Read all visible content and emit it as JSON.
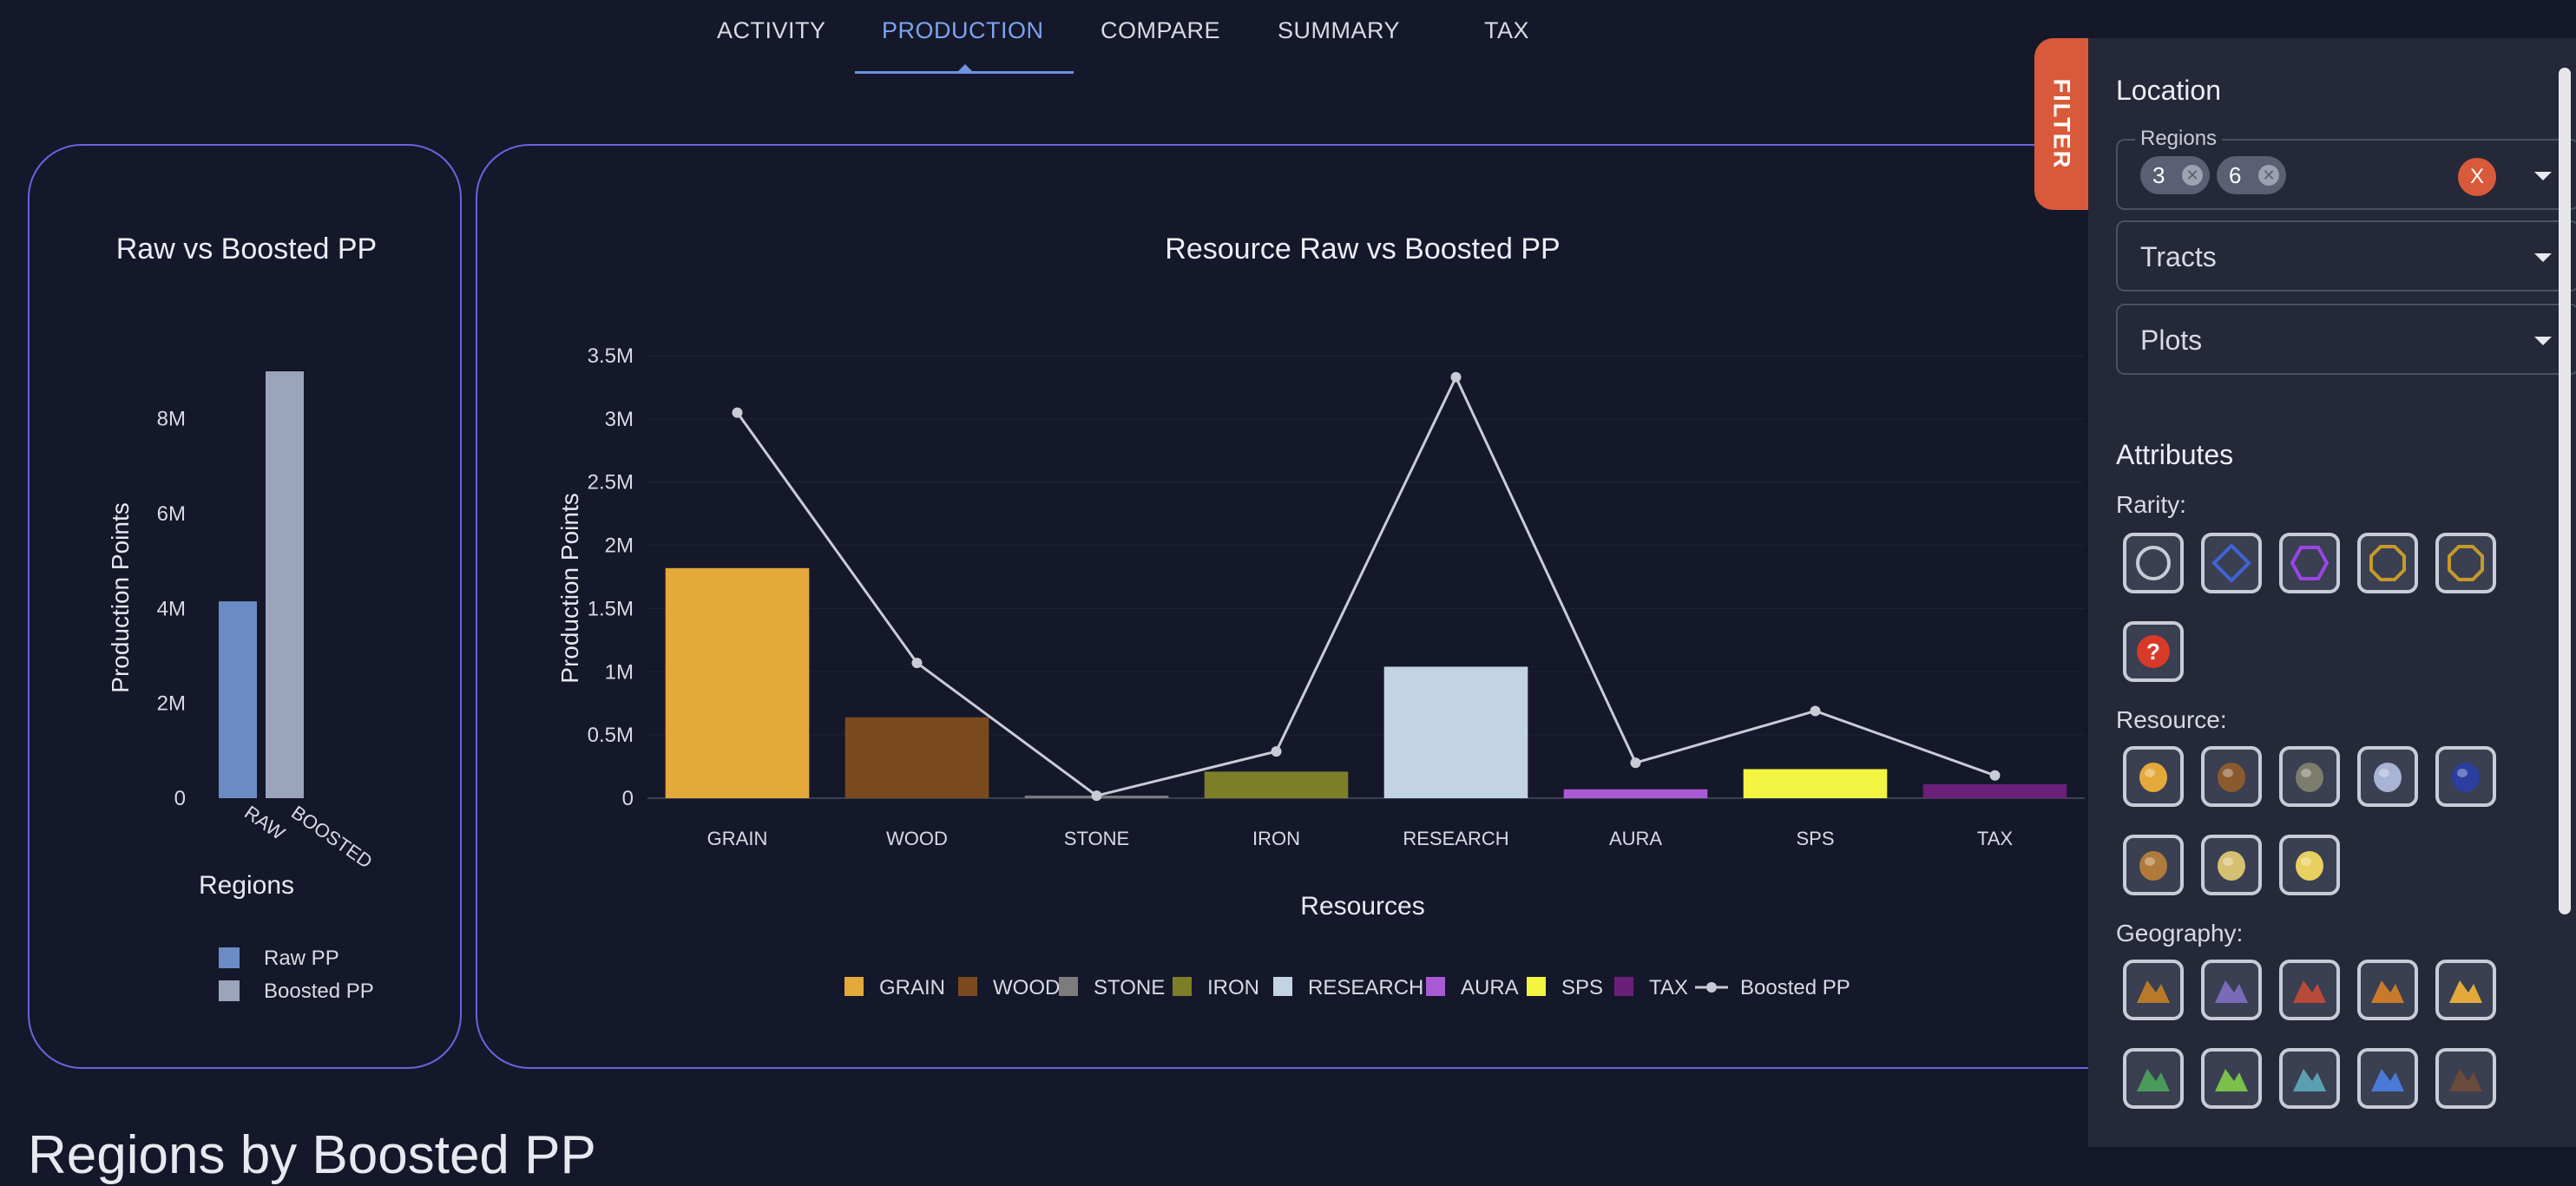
{
  "nav": {
    "tabs": [
      {
        "label": "ACTIVITY"
      },
      {
        "label": "PRODUCTION"
      },
      {
        "label": "COMPARE"
      },
      {
        "label": "SUMMARY"
      },
      {
        "label": "TAX"
      }
    ],
    "active_tab": "PRODUCTION"
  },
  "chart_data": [
    {
      "type": "bar",
      "title": "Raw vs Boosted PP",
      "xlabel": "Regions",
      "ylabel": "Production Points",
      "categories": [
        "RAW",
        "BOOSTED"
      ],
      "values": [
        4150000,
        9000000
      ],
      "colors": [
        "#6b8bc5",
        "#9aa4bb"
      ],
      "ylim": [
        0,
        9000000
      ],
      "yticks": [
        {
          "value": 0,
          "label": "0"
        },
        {
          "value": 2000000,
          "label": "2M"
        },
        {
          "value": 4000000,
          "label": "4M"
        },
        {
          "value": 6000000,
          "label": "6M"
        },
        {
          "value": 8000000,
          "label": "8M"
        }
      ],
      "legend": [
        {
          "name": "Raw PP",
          "color": "#6b8bc5"
        },
        {
          "name": "Boosted PP",
          "color": "#9aa4bb"
        }
      ],
      "legend_position": "bottom"
    },
    {
      "type": "bar",
      "title": "Resource Raw vs Boosted PP",
      "xlabel": "Resources",
      "ylabel": "Production Points",
      "categories": [
        "GRAIN",
        "WOOD",
        "STONE",
        "IRON",
        "RESEARCH",
        "AURA",
        "SPS",
        "TAX"
      ],
      "series": [
        {
          "name": "GRAIN",
          "values": [
            1820000,
            0,
            0,
            0,
            0,
            0,
            0,
            0
          ]
        },
        {
          "name": "WOOD",
          "values": [
            0,
            640000,
            0,
            0,
            0,
            0,
            0,
            0
          ]
        },
        {
          "name": "STONE",
          "values": [
            0,
            0,
            20000,
            0,
            0,
            0,
            0,
            0
          ]
        },
        {
          "name": "IRON",
          "values": [
            0,
            0,
            0,
            210000,
            0,
            0,
            0,
            0
          ]
        },
        {
          "name": "RESEARCH",
          "values": [
            0,
            0,
            0,
            0,
            1040000,
            0,
            0,
            0
          ]
        },
        {
          "name": "AURA",
          "values": [
            0,
            0,
            0,
            0,
            0,
            70000,
            0,
            0
          ]
        },
        {
          "name": "SPS",
          "values": [
            0,
            0,
            0,
            0,
            0,
            0,
            230000,
            0
          ]
        },
        {
          "name": "TAX",
          "values": [
            0,
            0,
            0,
            0,
            0,
            0,
            0,
            110000
          ]
        },
        {
          "name": "Boosted PP",
          "type": "line",
          "values": [
            3050000,
            1070000,
            20000,
            370000,
            3330000,
            280000,
            690000,
            180000
          ]
        }
      ],
      "colors": [
        "#e4a93b",
        "#7a4a1e",
        "#7c7c7c",
        "#7c7f27",
        "#c2d4e4",
        "#a95ad6",
        "#f4f442",
        "#6a2078"
      ],
      "line_color": "#c9cbd6",
      "ylim": [
        0,
        3500000
      ],
      "yticks": [
        {
          "value": 0,
          "label": "0"
        },
        {
          "value": 500000,
          "label": "0.5M"
        },
        {
          "value": 1000000,
          "label": "1M"
        },
        {
          "value": 1500000,
          "label": "1.5M"
        },
        {
          "value": 2000000,
          "label": "2M"
        },
        {
          "value": 2500000,
          "label": "2.5M"
        },
        {
          "value": 3000000,
          "label": "3M"
        },
        {
          "value": 3500000,
          "label": "3.5M"
        }
      ],
      "legend_position": "bottom"
    }
  ],
  "bottom_heading": "Regions by Boosted PP",
  "filter": {
    "tab_label": "FILTER",
    "location_heading": "Location",
    "regions_label": "Regions",
    "region_chips": [
      "3",
      "6"
    ],
    "clear_label": "X",
    "tracts_placeholder": "Tracts",
    "plots_placeholder": "Plots",
    "attributes_heading": "Attributes",
    "rarity_label": "Rarity:",
    "resource_label": "Resource:",
    "geography_label": "Geography:",
    "rarity_icons": [
      "common-circle-icon",
      "rare-diamond-icon",
      "epic-hexagon-icon",
      "legendary-octagon-icon",
      "mythic-octagon-icon",
      "unknown-question-icon"
    ],
    "resource_icons": [
      "grain-icon",
      "wood-icon",
      "stone-icon",
      "iron-icon",
      "aura-icon",
      "research-icon",
      "sps-icon",
      "tax-icon"
    ],
    "geography_icons": [
      "badlands-icon",
      "bog-icon",
      "caldera-icon",
      "canyon-icon",
      "desert-icon",
      "forest-icon",
      "hills-icon",
      "jungle-icon",
      "lake-icon",
      "mountain-icon"
    ]
  }
}
